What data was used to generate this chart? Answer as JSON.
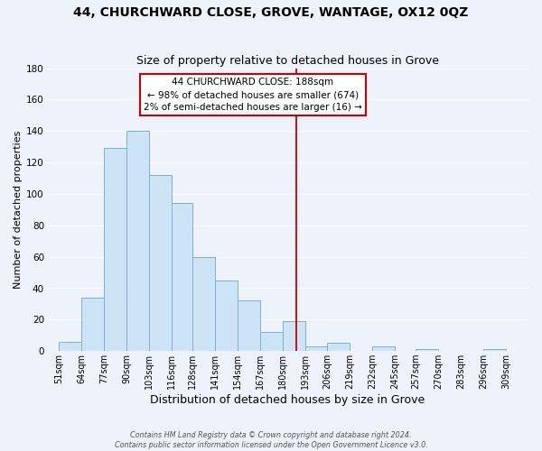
{
  "title": "44, CHURCHWARD CLOSE, GROVE, WANTAGE, OX12 0QZ",
  "subtitle": "Size of property relative to detached houses in Grove",
  "xlabel": "Distribution of detached houses by size in Grove",
  "ylabel": "Number of detached properties",
  "bar_left_edges": [
    51,
    64,
    77,
    90,
    103,
    116,
    128,
    141,
    154,
    167,
    180,
    193,
    206,
    219,
    232,
    245,
    257,
    270,
    283,
    296
  ],
  "bar_heights": [
    6,
    34,
    129,
    140,
    112,
    94,
    60,
    45,
    32,
    12,
    19,
    3,
    5,
    0,
    3,
    0,
    1,
    0,
    0,
    1
  ],
  "bar_widths": [
    13,
    13,
    13,
    13,
    13,
    12,
    13,
    13,
    13,
    13,
    13,
    13,
    13,
    13,
    13,
    12,
    13,
    13,
    13,
    13
  ],
  "tick_labels": [
    "51sqm",
    "64sqm",
    "77sqm",
    "90sqm",
    "103sqm",
    "116sqm",
    "128sqm",
    "141sqm",
    "154sqm",
    "167sqm",
    "180sqm",
    "193sqm",
    "206sqm",
    "219sqm",
    "232sqm",
    "245sqm",
    "257sqm",
    "270sqm",
    "283sqm",
    "296sqm",
    "309sqm"
  ],
  "bar_color": "#cce4f5",
  "bar_edge_color": "#7ab3d4",
  "property_line_x": 188,
  "property_line_color": "#cc0000",
  "annotation_title": "44 CHURCHWARD CLOSE: 188sqm",
  "annotation_line1": "← 98% of detached houses are smaller (674)",
  "annotation_line2": "2% of semi-detached houses are larger (16) →",
  "annotation_box_color": "#ffffff",
  "annotation_box_edge": "#cc0000",
  "ylim": [
    0,
    180
  ],
  "xlim": [
    44,
    322
  ],
  "yticks": [
    0,
    20,
    40,
    60,
    80,
    100,
    120,
    140,
    160,
    180
  ],
  "footer_line1": "Contains HM Land Registry data © Crown copyright and database right 2024.",
  "footer_line2": "Contains public sector information licensed under the Open Government Licence v3.0.",
  "bg_color": "#eef2fb",
  "grid_color": "#ffffff",
  "title_fontsize": 10,
  "subtitle_fontsize": 9,
  "xlabel_fontsize": 9,
  "ylabel_fontsize": 8,
  "tick_fontsize": 7,
  "ann_fontsize": 7.5,
  "footer_fontsize": 5.8
}
